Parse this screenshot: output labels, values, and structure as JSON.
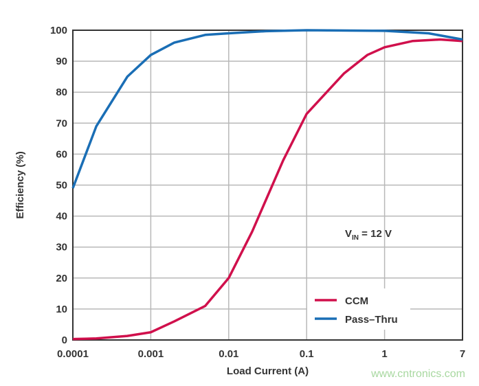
{
  "chart_data": {
    "type": "line",
    "xlabel": "Load Current (A)",
    "ylabel": "Efficiency (%)",
    "x_scale": "log",
    "xlim": [
      0.0001,
      7
    ],
    "ylim": [
      0,
      100
    ],
    "x_ticks": [
      "0.0001",
      "0.001",
      "0.01",
      "0.1",
      "1",
      "7"
    ],
    "y_ticks": [
      "0",
      "10",
      "20",
      "30",
      "40",
      "50",
      "60",
      "70",
      "80",
      "90",
      "100"
    ],
    "grid": true,
    "legend_position": "bottom-right",
    "annotation": {
      "main": "V",
      "sub": "IN",
      "rest": " = 12 V"
    },
    "series": [
      {
        "name": "CCM",
        "color": "#d0104c",
        "x": [
          0.0001,
          0.0002,
          0.0005,
          0.001,
          0.002,
          0.005,
          0.01,
          0.02,
          0.05,
          0.1,
          0.3,
          0.6,
          1,
          2,
          4,
          7
        ],
        "y": [
          0.3,
          0.5,
          1.3,
          2.5,
          6,
          11,
          20,
          35,
          58,
          73,
          86,
          92,
          94.5,
          96.5,
          97,
          96.5
        ]
      },
      {
        "name": "Pass–Thru",
        "color": "#1a6eb5",
        "x": [
          0.0001,
          0.0002,
          0.0005,
          0.001,
          0.002,
          0.005,
          0.01,
          0.03,
          0.1,
          1,
          3,
          7
        ],
        "y": [
          49,
          69,
          85,
          92,
          96,
          98.5,
          99,
          99.7,
          100,
          99.8,
          99,
          97
        ]
      }
    ]
  },
  "watermark": "www.cntronics.com"
}
